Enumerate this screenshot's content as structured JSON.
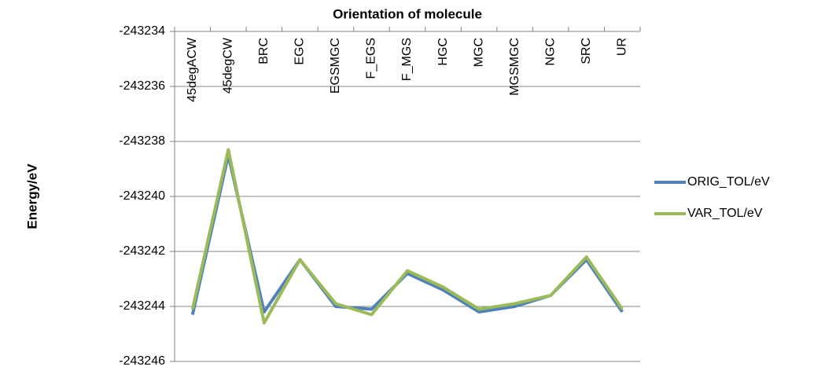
{
  "chart_data": {
    "type": "line",
    "title": "Orientation of molecule",
    "y_label": "Energy/eV",
    "categories": [
      "45degACW",
      "45degCW",
      "BRC",
      "EGC",
      "EGSMGC",
      "F_EGS",
      "F_MGS",
      "HGC",
      "MGC",
      "MGSMGC",
      "NGC",
      "SRC",
      "UR"
    ],
    "series": [
      {
        "name": "ORIG_TOL/eV",
        "color": "#4f81bd",
        "values": [
          -243244.3,
          -243238.5,
          -243244.2,
          -243242.3,
          -243244.0,
          -243244.1,
          -243242.8,
          -243243.4,
          -243244.2,
          -243244.0,
          -243243.6,
          -243242.3,
          -243244.2
        ]
      },
      {
        "name": "VAR_TOL/eV",
        "color": "#9bbb59",
        "values": [
          -243244.1,
          -243238.3,
          -243244.6,
          -243242.3,
          -243243.9,
          -243244.3,
          -243242.7,
          -243243.3,
          -243244.1,
          -243243.9,
          -243243.6,
          -243242.2,
          -243244.1
        ]
      }
    ],
    "ylim": [
      -243246,
      -243234
    ],
    "yticks": [
      -243246,
      -243244,
      -243242,
      -243240,
      -243238,
      -243236,
      -243234
    ],
    "grid": true,
    "legend": "right"
  }
}
